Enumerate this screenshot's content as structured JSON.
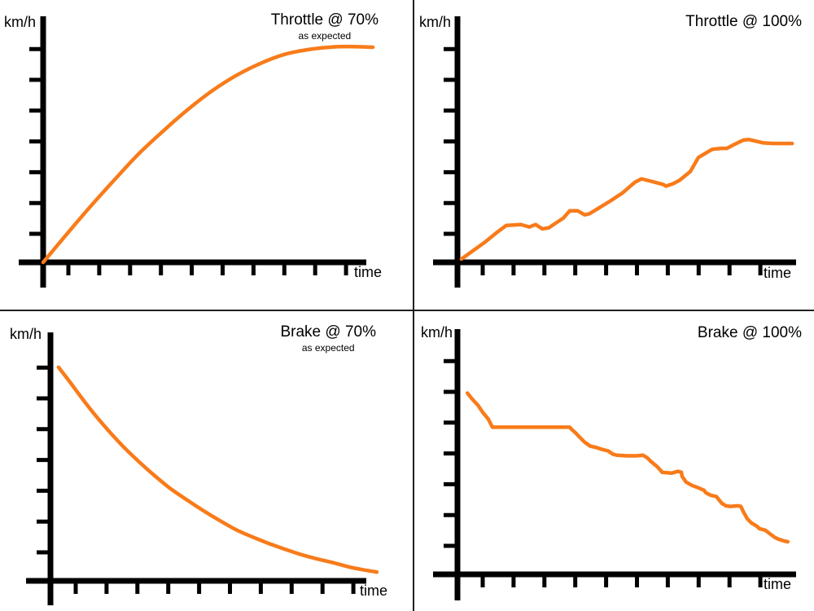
{
  "colors": {
    "curve": "#F87B1A",
    "axis": "#000000",
    "background": "#FFFFFF",
    "divider": "#1F1F1F"
  },
  "chart_data": [
    {
      "type": "line",
      "title": "Throttle @ 70%",
      "subtitle": "as expected",
      "ylabel": "km/h",
      "xlabel": "time",
      "line_style": "smooth",
      "line_color": "#F87B1A",
      "grid": false,
      "tick_labels": "none",
      "x_tick_count": 10,
      "y_tick_count": 7,
      "x_range": [
        0,
        11
      ],
      "y_range": [
        0,
        7.5
      ],
      "x": [
        0,
        0.71,
        1.5,
        2.29,
        3.08,
        3.87,
        4.66,
        5.45,
        6.24,
        7.03,
        7.82,
        8.61,
        9.39,
        10.05,
        10.66
      ],
      "y": [
        0,
        0.86,
        1.8,
        2.69,
        3.55,
        4.3,
        5.0,
        5.62,
        6.13,
        6.53,
        6.83,
        6.99,
        7.07,
        7.08,
        7.06
      ]
    },
    {
      "type": "line",
      "title": "Throttle @ 100%",
      "subtitle": "",
      "ylabel": "km/h",
      "xlabel": "time",
      "line_style": "jagged",
      "line_color": "#F87B1A",
      "grid": false,
      "tick_labels": "none",
      "x_tick_count": 10,
      "y_tick_count": 7,
      "x_range": [
        0,
        11
      ],
      "y_range": [
        0,
        7.5
      ],
      "x": [
        0.13,
        0.87,
        1.26,
        1.58,
        2.05,
        2.32,
        2.53,
        2.74,
        2.95,
        3.18,
        3.42,
        3.63,
        3.89,
        4.11,
        4.26,
        4.55,
        4.95,
        5.34,
        5.74,
        5.95,
        6.26,
        6.66,
        6.74,
        6.97,
        7.18,
        7.53,
        7.79,
        7.97,
        8.24,
        8.53,
        8.71,
        8.95,
        9.24,
        9.42,
        9.63,
        9.89,
        10.21,
        10.82
      ],
      "y": [
        0.11,
        0.65,
        0.97,
        1.21,
        1.24,
        1.16,
        1.24,
        1.1,
        1.13,
        1.29,
        1.45,
        1.69,
        1.69,
        1.56,
        1.59,
        1.77,
        2.02,
        2.28,
        2.63,
        2.74,
        2.66,
        2.55,
        2.5,
        2.58,
        2.69,
        2.98,
        3.44,
        3.55,
        3.71,
        3.74,
        3.74,
        3.87,
        4.01,
        4.03,
        3.98,
        3.92,
        3.9,
        3.9
      ]
    },
    {
      "type": "line",
      "title": "Brake @ 70%",
      "subtitle": "as expected",
      "ylabel": "km/h",
      "xlabel": "time",
      "line_style": "smooth",
      "line_color": "#F87B1A",
      "grid": false,
      "tick_labels": "none",
      "x_tick_count": 10,
      "y_tick_count": 7,
      "x_range": [
        0,
        11
      ],
      "y_range": [
        0,
        7.5
      ],
      "x": [
        0.26,
        0.61,
        1.0,
        1.39,
        1.79,
        2.32,
        2.84,
        3.37,
        3.89,
        4.42,
        4.95,
        5.47,
        6.0,
        6.53,
        7.05,
        7.58,
        8.11,
        8.63,
        9.16,
        9.68,
        10.08,
        10.55
      ],
      "y": [
        7.01,
        6.55,
        6.02,
        5.51,
        5.03,
        4.44,
        3.93,
        3.45,
        3.02,
        2.65,
        2.3,
        1.98,
        1.68,
        1.44,
        1.23,
        1.04,
        0.86,
        0.72,
        0.59,
        0.45,
        0.37,
        0.29
      ]
    },
    {
      "type": "line",
      "title": "Brake @ 100%",
      "subtitle": "",
      "ylabel": "km/h",
      "xlabel": "time",
      "line_style": "jagged",
      "line_color": "#F87B1A",
      "grid": false,
      "tick_labels": "none",
      "x_tick_count": 10,
      "y_tick_count": 7,
      "x_range": [
        0,
        11
      ],
      "y_range": [
        0,
        7.5
      ],
      "x": [
        0.32,
        0.47,
        0.66,
        0.82,
        1.0,
        1.13,
        3.63,
        3.68,
        3.82,
        3.97,
        4.11,
        4.29,
        4.5,
        4.68,
        4.87,
        5.03,
        5.16,
        5.47,
        5.79,
        6.0,
        6.13,
        6.26,
        6.45,
        6.58,
        6.61,
        6.92,
        7.13,
        7.24,
        7.26,
        7.39,
        7.58,
        7.79,
        7.97,
        8.03,
        8.18,
        8.37,
        8.55,
        8.68,
        8.82,
        9.08,
        9.16,
        9.24,
        9.37,
        9.5,
        9.68,
        9.76,
        9.95,
        10.13,
        10.26,
        10.39,
        10.55,
        10.68
      ],
      "y": [
        5.95,
        5.76,
        5.55,
        5.31,
        5.09,
        4.83,
        4.83,
        4.77,
        4.64,
        4.48,
        4.34,
        4.21,
        4.16,
        4.1,
        4.05,
        3.94,
        3.91,
        3.89,
        3.89,
        3.91,
        3.83,
        3.7,
        3.54,
        3.4,
        3.35,
        3.32,
        3.38,
        3.35,
        3.22,
        3.03,
        2.92,
        2.84,
        2.76,
        2.68,
        2.6,
        2.55,
        2.33,
        2.25,
        2.23,
        2.25,
        2.23,
        2.06,
        1.82,
        1.69,
        1.58,
        1.5,
        1.45,
        1.31,
        1.21,
        1.15,
        1.1,
        1.07
      ]
    }
  ]
}
